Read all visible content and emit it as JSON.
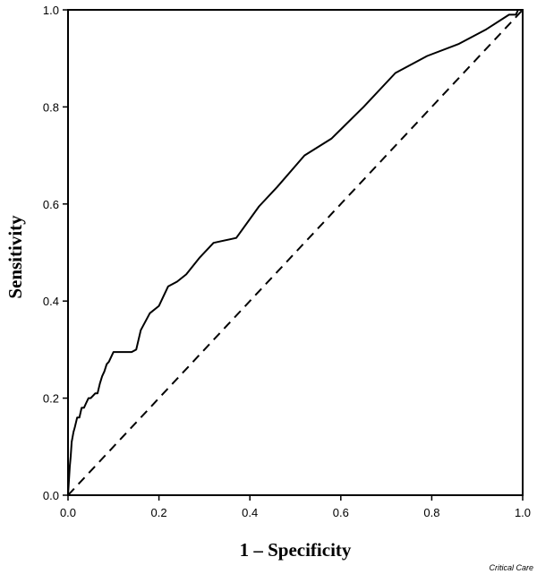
{
  "chart_data": {
    "type": "line",
    "xlabel": "1 – Specificity",
    "ylabel": "Sensitivity",
    "xlim": [
      0,
      1
    ],
    "ylim": [
      0,
      1
    ],
    "x_ticks": [
      "0.0",
      "0.2",
      "0.4",
      "0.6",
      "0.8",
      "1.0"
    ],
    "y_ticks": [
      "0.0",
      "0.2",
      "0.4",
      "0.6",
      "0.8",
      "1.0"
    ],
    "grid": false,
    "series": [
      {
        "style": "solid",
        "color": "#000000",
        "x": [
          0,
          0.002,
          0.004,
          0.006,
          0.008,
          0.01,
          0.012,
          0.015,
          0.02,
          0.025,
          0.03,
          0.035,
          0.04,
          0.045,
          0.05,
          0.055,
          0.06,
          0.065,
          0.07,
          0.075,
          0.08,
          0.085,
          0.09,
          0.1,
          0.12,
          0.14,
          0.15,
          0.16,
          0.18,
          0.2,
          0.22,
          0.24,
          0.26,
          0.29,
          0.32,
          0.37,
          0.42,
          0.46,
          0.52,
          0.58,
          0.65,
          0.72,
          0.79,
          0.86,
          0.92,
          0.97,
          0.985,
          0.99,
          0.995,
          1.0
        ],
        "y": [
          0,
          0.03,
          0.06,
          0.08,
          0.11,
          0.12,
          0.13,
          0.14,
          0.16,
          0.16,
          0.18,
          0.18,
          0.19,
          0.2,
          0.2,
          0.205,
          0.21,
          0.21,
          0.23,
          0.245,
          0.255,
          0.27,
          0.275,
          0.295,
          0.295,
          0.295,
          0.3,
          0.34,
          0.375,
          0.39,
          0.43,
          0.44,
          0.455,
          0.49,
          0.52,
          0.53,
          0.595,
          0.635,
          0.7,
          0.735,
          0.8,
          0.87,
          0.905,
          0.93,
          0.96,
          0.99,
          0.99,
          1.0,
          1.0,
          1.0
        ]
      },
      {
        "style": "dashed",
        "color": "#000000",
        "x": [
          0,
          1
        ],
        "y": [
          0,
          1
        ]
      }
    ]
  },
  "credit": "Critical Care"
}
